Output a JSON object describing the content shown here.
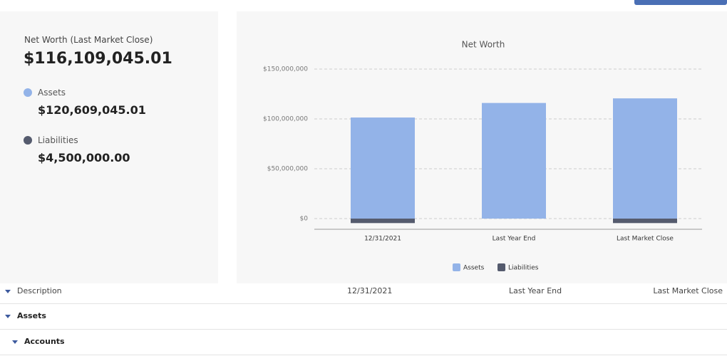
{
  "summary": {
    "net_worth_label": "Net Worth (Last Market Close)",
    "net_worth": "$116,109,045.01",
    "assets_label": "Assets",
    "assets": "$120,609,045.01",
    "liabilities_label": "Liabilities",
    "liabilities": "$4,500,000.00"
  },
  "chart_data": {
    "type": "bar",
    "stacked": true,
    "title": "Net Worth",
    "categories": [
      "12/31/2021",
      "Last Year End",
      "Last Market Close"
    ],
    "series": [
      {
        "name": "Assets",
        "color": "#93b3e8",
        "values": [
          101400000,
          116000000,
          120609045.01
        ]
      },
      {
        "name": "Liabilities",
        "color": "#555b6e",
        "values": [
          -4500000,
          0,
          -4500000
        ]
      }
    ],
    "ylim": [
      -10700000,
      150000000
    ],
    "yticks": [
      {
        "value": 0,
        "label": "$0"
      },
      {
        "value": 50000000,
        "label": "$50,000,000"
      },
      {
        "value": 100000000,
        "label": "$100,000,000"
      },
      {
        "value": 150000000,
        "label": "$150,000,000"
      }
    ],
    "grid": true,
    "legend": "bottom"
  },
  "table": {
    "header": [
      "Description",
      "12/31/2021",
      "Last Year End",
      "Last Market Close"
    ],
    "rows": [
      [
        "Assets"
      ],
      [
        "Accounts"
      ]
    ]
  }
}
